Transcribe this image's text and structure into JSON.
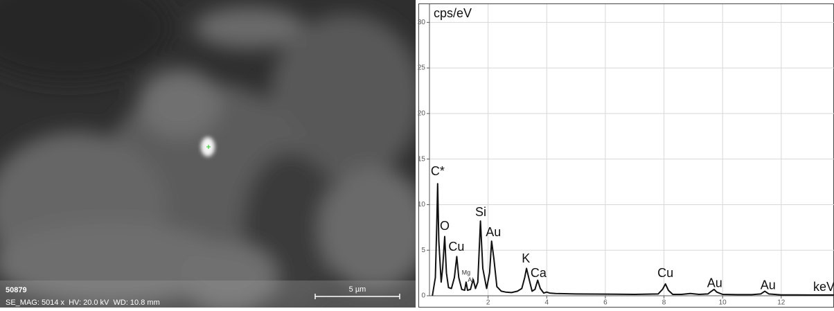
{
  "sem_image": {
    "id": "50879",
    "caption": "SE_MAG: 5014 x  HV: 20.0 kV  WD: 10.8 mm",
    "scale_bar": "5 µm"
  },
  "chart_data": {
    "type": "line",
    "ylabel": "cps/eV",
    "xlabel": "keV",
    "x": [
      0.1,
      0.2,
      0.25,
      0.28,
      0.32,
      0.4,
      0.45,
      0.52,
      0.58,
      0.65,
      0.75,
      0.85,
      0.93,
      1.0,
      1.1,
      1.2,
      1.25,
      1.3,
      1.4,
      1.49,
      1.57,
      1.65,
      1.74,
      1.82,
      1.95,
      2.05,
      2.12,
      2.2,
      2.3,
      2.45,
      2.6,
      2.8,
      3.0,
      3.15,
      3.25,
      3.31,
      3.4,
      3.5,
      3.6,
      3.69,
      3.78,
      3.9,
      4.0,
      4.1,
      4.3,
      5,
      6,
      7,
      7.8,
      7.95,
      8.05,
      8.15,
      8.3,
      8.6,
      8.9,
      9.2,
      9.5,
      9.62,
      9.71,
      9.8,
      10,
      10.5,
      11,
      11.3,
      11.44,
      11.58,
      12,
      12.5,
      13,
      13.5,
      13.8
    ],
    "values": [
      0,
      2,
      8,
      12.3,
      6,
      1.5,
      3,
      6.5,
      2.5,
      0.9,
      0.8,
      2.0,
      4.3,
      2.0,
      0.7,
      0.6,
      1.5,
      0.6,
      0.7,
      1.8,
      0.8,
      1.5,
      8.2,
      3.0,
      0.8,
      2.5,
      6.0,
      4.0,
      1.0,
      0.5,
      0.4,
      0.35,
      0.5,
      0.8,
      2.0,
      3.0,
      1.8,
      0.5,
      0.7,
      1.7,
      0.8,
      0.3,
      0.4,
      0.3,
      0.25,
      0.2,
      0.18,
      0.15,
      0.2,
      0.7,
      1.3,
      0.6,
      0.15,
      0.15,
      0.25,
      0.15,
      0.2,
      0.5,
      0.7,
      0.4,
      0.15,
      0.12,
      0.12,
      0.2,
      0.5,
      0.2,
      0.1,
      0.1,
      0.08,
      0.08,
      0.08
    ],
    "color": "#111111",
    "xlim": [
      0,
      13.8
    ],
    "ylim": [
      0,
      32
    ],
    "xticks": [
      2,
      4,
      6,
      8,
      10,
      12
    ],
    "yticks": [
      0,
      5,
      10,
      15,
      20,
      25,
      30
    ],
    "grid": true,
    "annotations": [
      {
        "text": "C*",
        "x": 0.28,
        "y": 13.6
      },
      {
        "text": "O",
        "x": 0.52,
        "y": 7.6
      },
      {
        "text": "Cu",
        "x": 0.92,
        "y": 5.3
      },
      {
        "text": "Mg",
        "x": 1.25,
        "y": 2.5,
        "small": true
      },
      {
        "text": "Al",
        "x": 1.4,
        "y": 1.7,
        "small": true
      },
      {
        "text": "Si",
        "x": 1.75,
        "y": 9.1
      },
      {
        "text": "Au",
        "x": 2.18,
        "y": 6.9
      },
      {
        "text": "K",
        "x": 3.29,
        "y": 4.0
      },
      {
        "text": "Ca",
        "x": 3.72,
        "y": 2.4
      },
      {
        "text": "Cu",
        "x": 8.05,
        "y": 2.4
      },
      {
        "text": "Au",
        "x": 9.73,
        "y": 1.3
      },
      {
        "text": "Au",
        "x": 11.55,
        "y": 1.1
      }
    ]
  }
}
